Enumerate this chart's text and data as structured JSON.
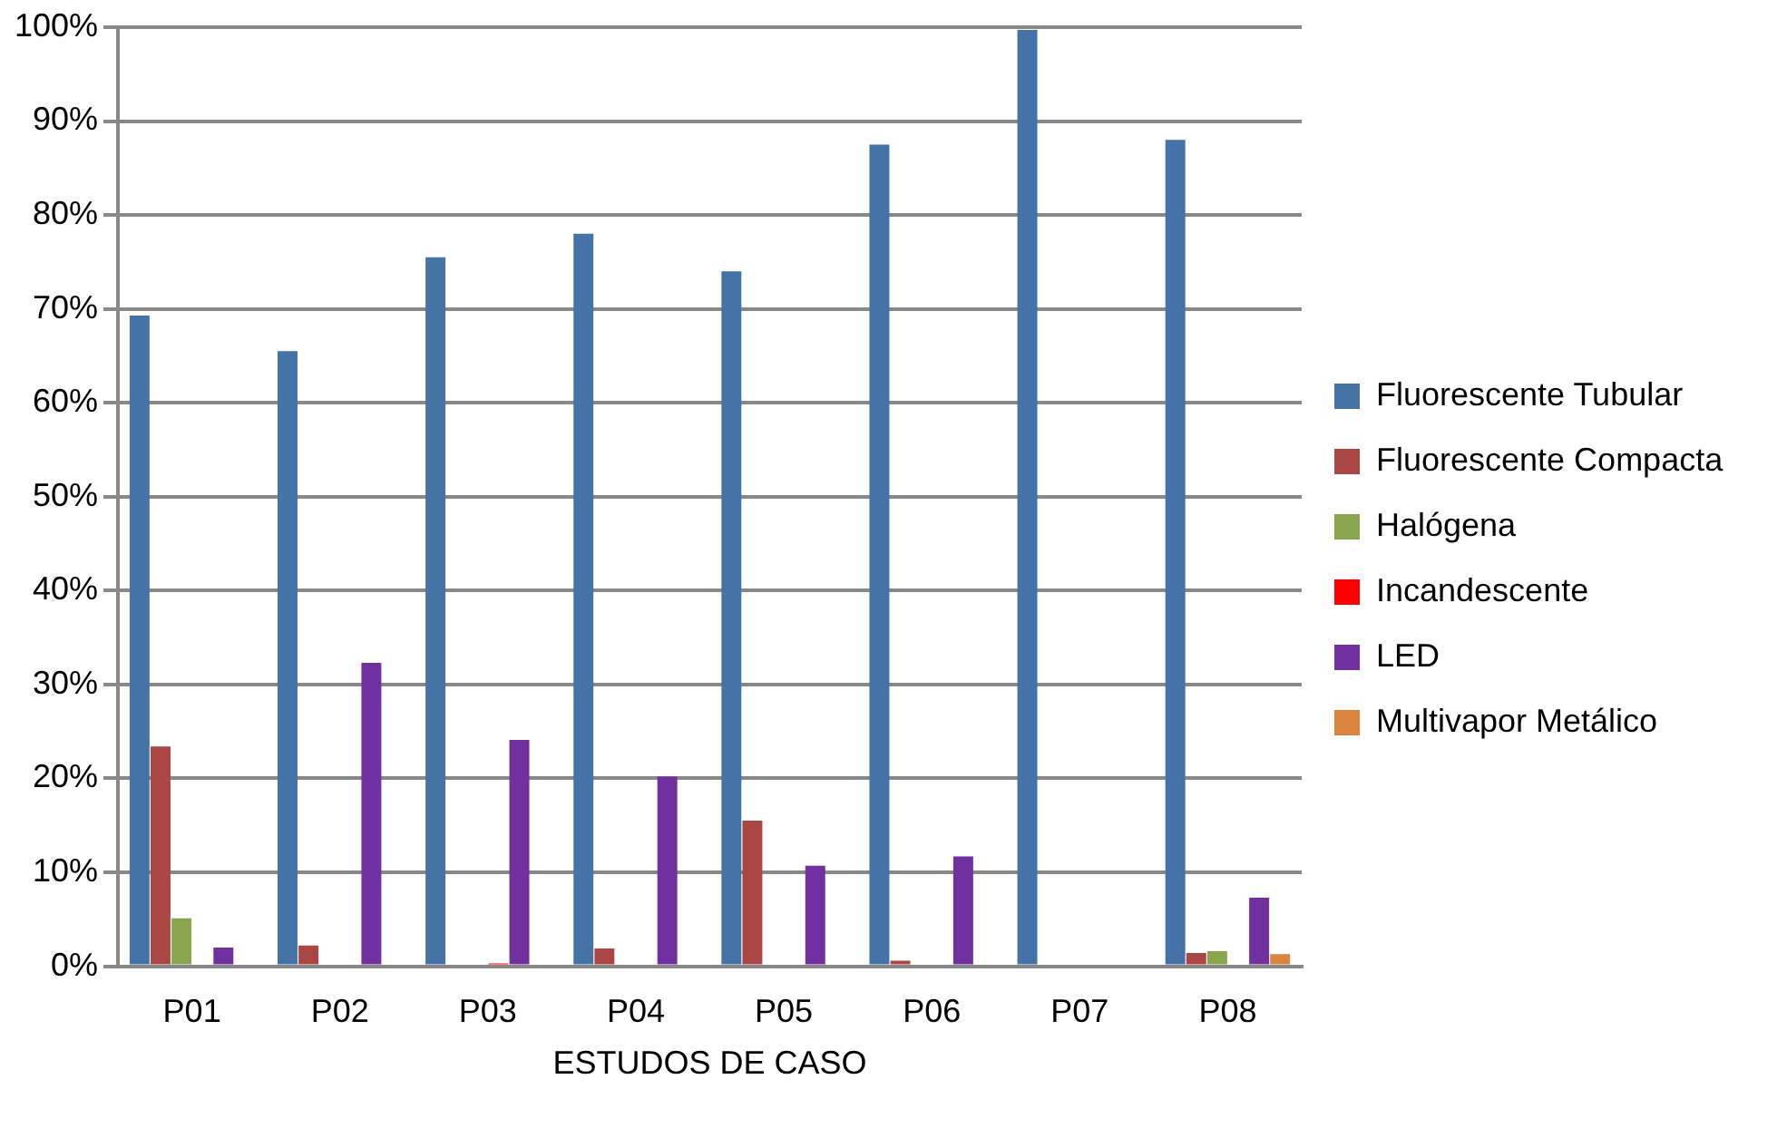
{
  "chart_data": {
    "type": "bar",
    "xlabel": "ESTUDOS DE CASO",
    "categories": [
      "P01",
      "P02",
      "P03",
      "P04",
      "P05",
      "P06",
      "P07",
      "P08"
    ],
    "series": [
      {
        "name": "Fluorescente Tubular",
        "color": "#4572a7",
        "values": [
          69.3,
          65.5,
          75.5,
          78,
          74,
          87.5,
          99.7,
          88
        ]
      },
      {
        "name": "Fluorescente Compacta",
        "color": "#aa4643",
        "values": [
          23.4,
          2.2,
          0,
          1.9,
          15.5,
          0.6,
          0,
          1.4
        ]
      },
      {
        "name": "Halógena",
        "color": "#89a54e",
        "values": [
          5.1,
          0,
          0,
          0,
          0,
          0,
          0,
          1.6
        ]
      },
      {
        "name": "Incandescente",
        "color": "#ff0000",
        "values": [
          0,
          0,
          0.3,
          0,
          0,
          0,
          0,
          null
        ]
      },
      {
        "name": "LED",
        "color": "#7030a0",
        "values": [
          2,
          32.3,
          24.1,
          20.2,
          10.7,
          11.7,
          0,
          7.3
        ]
      },
      {
        "name": "Multivapor Metálico",
        "color": "#db843d",
        "values": [
          0,
          0,
          0,
          0,
          0,
          0,
          0,
          1.3
        ]
      }
    ],
    "ylim": [
      0,
      100
    ],
    "yticks": [
      {
        "value": 0,
        "label": "0%"
      },
      {
        "value": 10,
        "label": "10%"
      },
      {
        "value": 20,
        "label": "20%"
      },
      {
        "value": 30,
        "label": "30%"
      },
      {
        "value": 40,
        "label": "40%"
      },
      {
        "value": 50,
        "label": "50%"
      },
      {
        "value": 60,
        "label": "60%"
      },
      {
        "value": 70,
        "label": "70%"
      },
      {
        "value": 80,
        "label": "80%"
      },
      {
        "value": 90,
        "label": "90%"
      },
      {
        "value": 100,
        "label": "100%"
      }
    ],
    "grid": "y",
    "legend": "right"
  }
}
